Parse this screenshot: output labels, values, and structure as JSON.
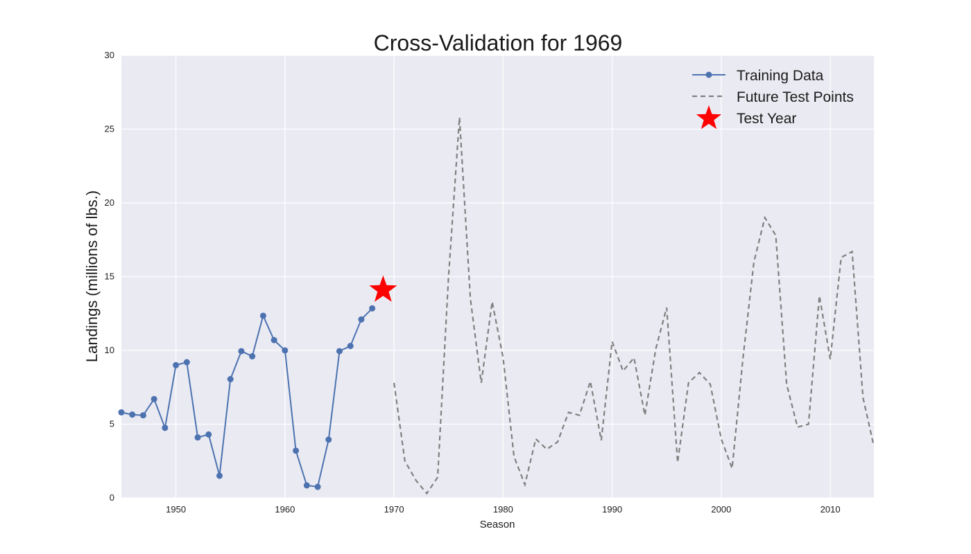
{
  "chart_data": {
    "type": "line",
    "title": "Cross-Validation for 1969",
    "xlabel": "Season",
    "ylabel": "Landings (millions of lbs.)",
    "xlim": [
      1945,
      2014
    ],
    "ylim": [
      0,
      30
    ],
    "x_ticks": [
      1950,
      1960,
      1970,
      1980,
      1990,
      2000,
      2010
    ],
    "y_ticks": [
      0,
      5,
      10,
      15,
      20,
      25,
      30
    ],
    "grid": true,
    "legend_position": "top-right",
    "colors": {
      "background": "#eaeaf2",
      "grid": "#ffffff",
      "training": "#4c72b0",
      "future": "#808080",
      "test": "#ff0000"
    },
    "series": [
      {
        "name": "Training Data",
        "style": "solid-line-with-circle-markers",
        "x": [
          1945,
          1946,
          1947,
          1948,
          1949,
          1950,
          1951,
          1952,
          1953,
          1954,
          1955,
          1956,
          1957,
          1958,
          1959,
          1960,
          1961,
          1962,
          1963,
          1964,
          1965,
          1966,
          1967,
          1968
        ],
        "y": [
          5.8,
          5.65,
          5.6,
          6.7,
          4.75,
          9.0,
          9.2,
          4.1,
          4.3,
          1.5,
          8.05,
          9.95,
          9.6,
          12.35,
          10.7,
          10.0,
          3.2,
          0.85,
          0.75,
          3.95,
          9.95,
          10.3,
          12.1,
          12.85
        ]
      },
      {
        "name": "Future Test Points",
        "style": "dashed-line",
        "x": [
          1970,
          1971,
          1972,
          1973,
          1974,
          1975,
          1976,
          1977,
          1978,
          1979,
          1980,
          1981,
          1982,
          1983,
          1984,
          1985,
          1986,
          1987,
          1988,
          1989,
          1990,
          1991,
          1992,
          1993,
          1994,
          1995,
          1996,
          1997,
          1998,
          1999,
          2000,
          2001,
          2002,
          2003,
          2004,
          2005,
          2006,
          2007,
          2008,
          2009,
          2010,
          2011,
          2012,
          2013,
          2014
        ],
        "y": [
          7.8,
          2.5,
          1.2,
          0.3,
          1.4,
          15.0,
          25.8,
          13.5,
          7.8,
          13.3,
          9.5,
          2.8,
          0.9,
          4.0,
          3.3,
          3.8,
          5.8,
          5.6,
          7.9,
          3.9,
          10.6,
          8.6,
          9.5,
          5.6,
          10.1,
          12.9,
          2.4,
          7.8,
          8.5,
          7.7,
          4.0,
          2.0,
          9.5,
          16.0,
          19.0,
          17.8,
          7.7,
          4.8,
          5.0,
          13.7,
          9.4,
          16.3,
          16.7,
          6.8,
          3.5
        ]
      },
      {
        "name": "Test Year",
        "style": "star-marker",
        "x": [
          1969
        ],
        "y": [
          14.1
        ]
      }
    ]
  }
}
